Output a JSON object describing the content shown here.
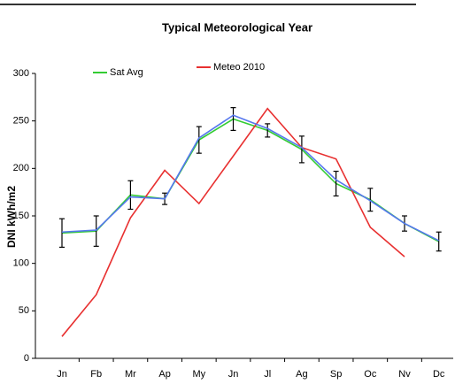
{
  "chart_data": {
    "type": "line",
    "title": "Typical Meteorological Year",
    "y_label": "DNI kWh/m2",
    "categories": [
      "Jn",
      "Fb",
      "Mr",
      "Ap",
      "My",
      "Jn",
      "Jl",
      "Ag",
      "Sp",
      "Oc",
      "Nv",
      "Dc"
    ],
    "series": [
      {
        "name": "Sat Avg",
        "color": "#33cc33",
        "values": [
          132,
          134,
          172,
          168,
          230,
          252,
          240,
          220,
          184,
          167,
          142,
          123
        ],
        "errors": [
          15,
          16,
          15,
          6,
          14,
          12,
          7,
          14,
          13,
          12,
          8,
          10
        ]
      },
      {
        "name": "Meteo 2010",
        "color": "#e83030",
        "values": [
          23,
          67,
          148,
          198,
          163,
          213,
          263,
          222,
          210,
          138,
          107,
          null
        ]
      },
      {
        "color": "#5577ee",
        "values": [
          133,
          135,
          170,
          168,
          232,
          256,
          242,
          222,
          188,
          166,
          142,
          124
        ]
      }
    ],
    "ylim": [
      0,
      300
    ],
    "yticks": [
      0,
      50,
      100,
      150,
      200,
      250,
      300
    ]
  }
}
